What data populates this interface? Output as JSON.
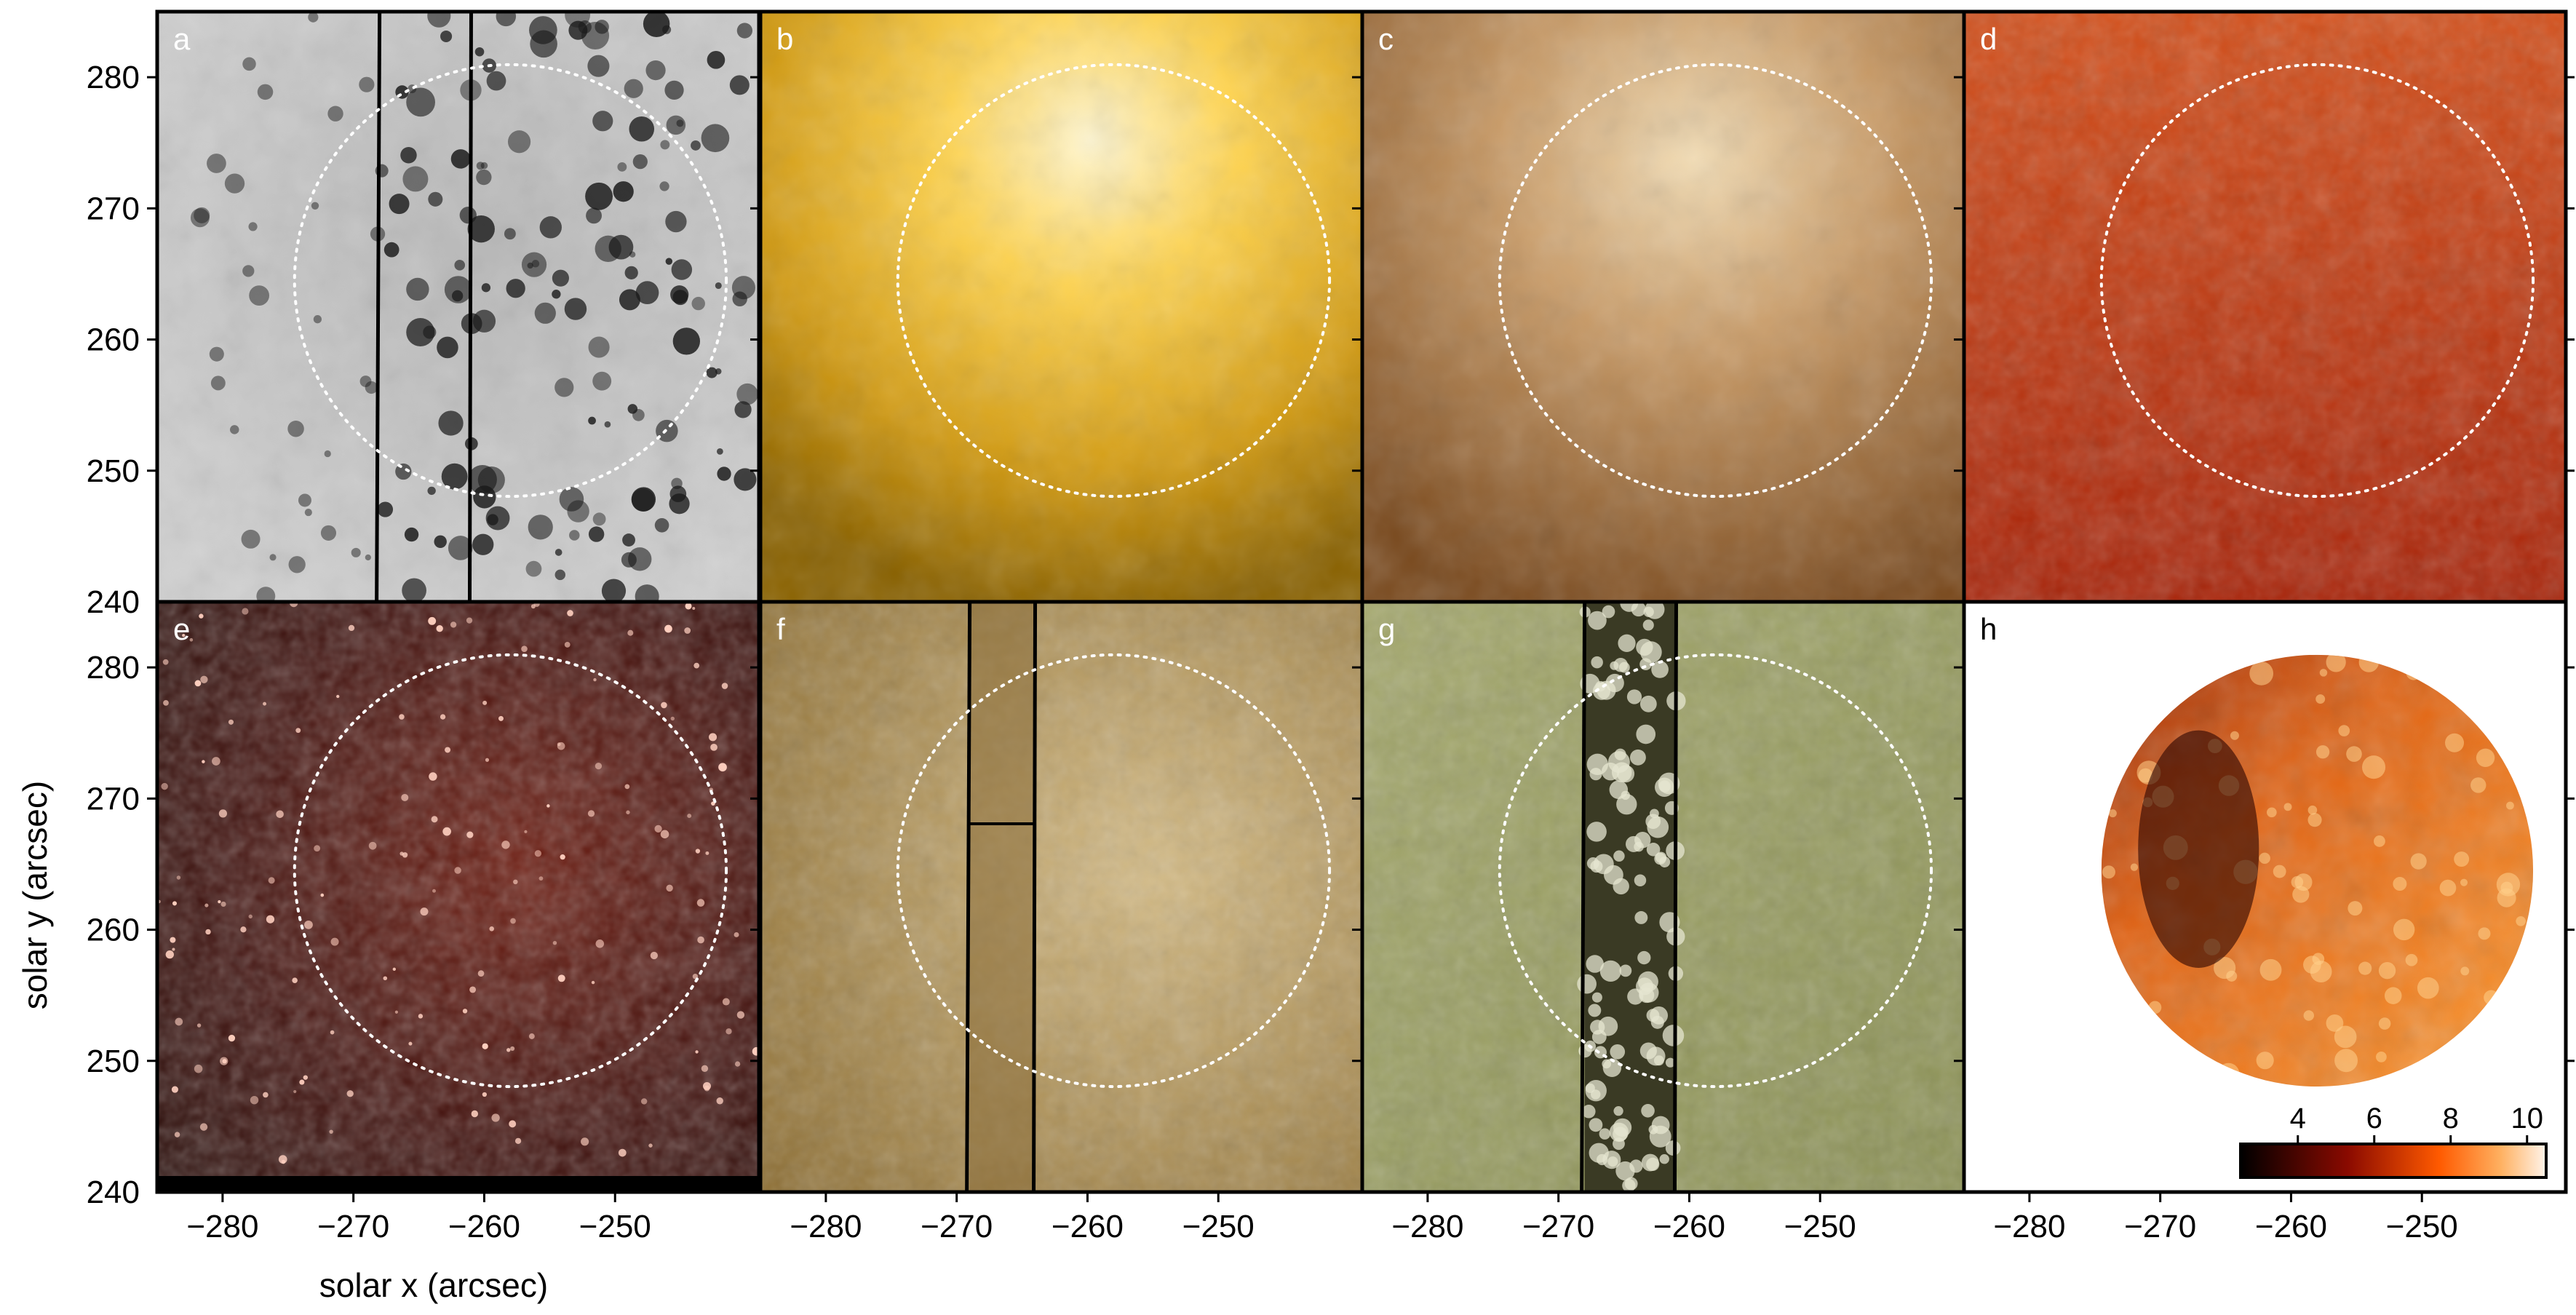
{
  "chart_data": {
    "type": "heatmap",
    "layout": "2x4 image grid",
    "xlabel": "solar x (arcsec)",
    "ylabel": "solar y (arcsec)",
    "xlim": [
      -285,
      -239
    ],
    "ylim": [
      240,
      285
    ],
    "x_ticks": [
      -280,
      -270,
      -260,
      -250
    ],
    "x_tick_labels": [
      "−280",
      "−270",
      "−260",
      "−250"
    ],
    "y_ticks": [
      250,
      260,
      270,
      280
    ],
    "y_tick_labels": [
      "250",
      "260",
      "270",
      "280"
    ],
    "y_tick_labels_bottom_row": [
      "240",
      "250",
      "260",
      "270",
      "280"
    ],
    "y_tick_labels_top_row": [
      "240",
      "250",
      "260",
      "270",
      "280"
    ],
    "circle_center": [
      -258,
      264.5
    ],
    "circle_radius": 16.5,
    "panels": [
      {
        "label": "a",
        "colormap": "gray",
        "palette": [
          "#c4c4c4",
          "#1c1c1c"
        ],
        "slit_lines": [
          -268,
          -261
        ],
        "circle": true
      },
      {
        "label": "b",
        "colormap": "yellow-gold",
        "palette": [
          "#a07400",
          "#ffdf70"
        ],
        "slit_lines": [],
        "circle": true
      },
      {
        "label": "c",
        "colormap": "tan-brown",
        "palette": [
          "#8a5a2a",
          "#e8cca0"
        ],
        "slit_lines": [],
        "circle": true
      },
      {
        "label": "d",
        "colormap": "red-orange",
        "palette": [
          "#a81a00",
          "#d04a10"
        ],
        "slit_lines": [],
        "circle": true
      },
      {
        "label": "e",
        "colormap": "dark-red",
        "palette": [
          "#2a0400",
          "#ff9a70"
        ],
        "slit_lines": [],
        "circle": true
      },
      {
        "label": "f",
        "colormap": "ochre",
        "palette": [
          "#7a5e24",
          "#e0c890"
        ],
        "slit_lines": [
          -269,
          -264
        ],
        "circle": true
      },
      {
        "label": "g",
        "colormap": "olive-green",
        "palette": [
          "#6e7440",
          "#c0c48c"
        ],
        "slit_lines": [
          -268,
          -261
        ],
        "circle": true
      },
      {
        "label": "h",
        "colormap": "hot",
        "palette": [
          "#000000",
          "#fff4ea"
        ],
        "slit_lines": [],
        "circle": false,
        "masked_disk": true
      }
    ],
    "colorbar": {
      "panel": "h",
      "ticks": [
        "4",
        "6",
        "8",
        "10"
      ],
      "range": [
        2.5,
        10.5
      ]
    }
  }
}
